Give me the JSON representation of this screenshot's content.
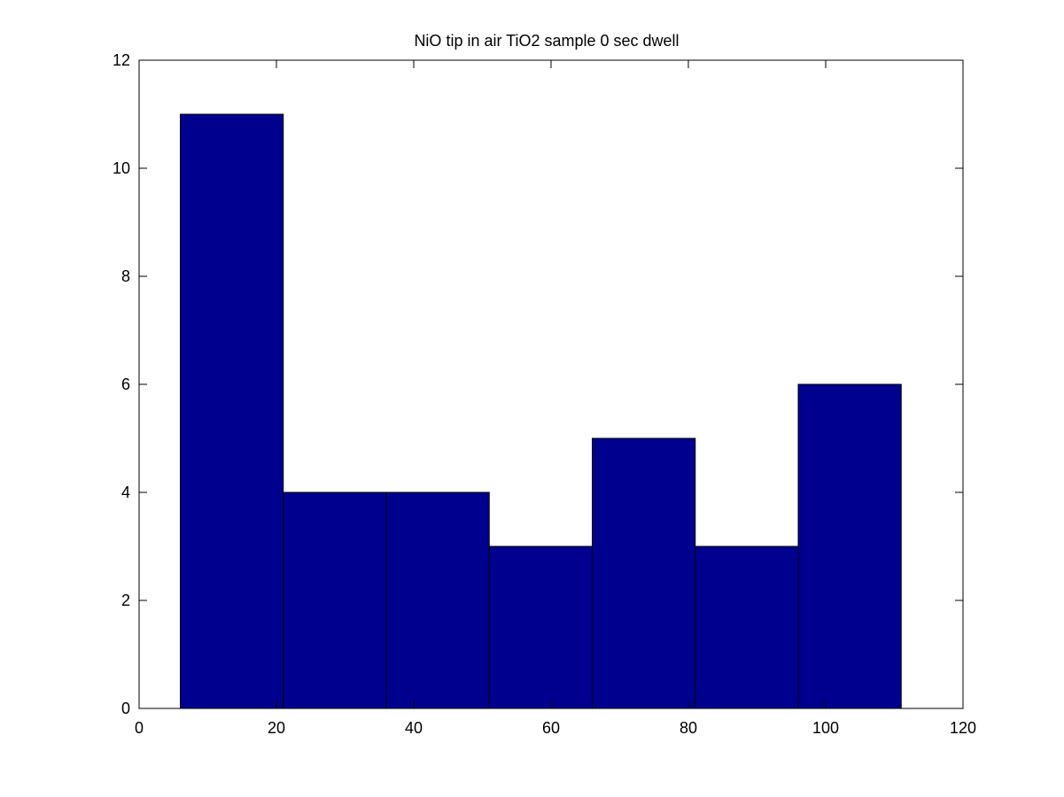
{
  "chart_data": {
    "type": "bar",
    "title": "NiO tip in air TiO2 sample 0 sec dwell",
    "xlabel": "",
    "ylabel": "",
    "bins": [
      {
        "x_start": 6.0,
        "x_end": 21.0,
        "value": 11
      },
      {
        "x_start": 21.0,
        "x_end": 36.0,
        "value": 4
      },
      {
        "x_start": 36.0,
        "x_end": 51.0,
        "value": 4
      },
      {
        "x_start": 51.0,
        "x_end": 66.0,
        "value": 3
      },
      {
        "x_start": 66.0,
        "x_end": 81.0,
        "value": 5
      },
      {
        "x_start": 81.0,
        "x_end": 96.0,
        "value": 3
      },
      {
        "x_start": 96.0,
        "x_end": 111.0,
        "value": 6
      }
    ],
    "xlim": [
      0,
      120
    ],
    "ylim": [
      0,
      12
    ],
    "x_ticks": [
      "0",
      "20",
      "40",
      "60",
      "80",
      "100",
      "120"
    ],
    "y_ticks": [
      "0",
      "2",
      "4",
      "6",
      "8",
      "10",
      "12"
    ],
    "bar_color": "#00008f",
    "edge_color": "#000000",
    "grid": false,
    "legend": "none"
  }
}
